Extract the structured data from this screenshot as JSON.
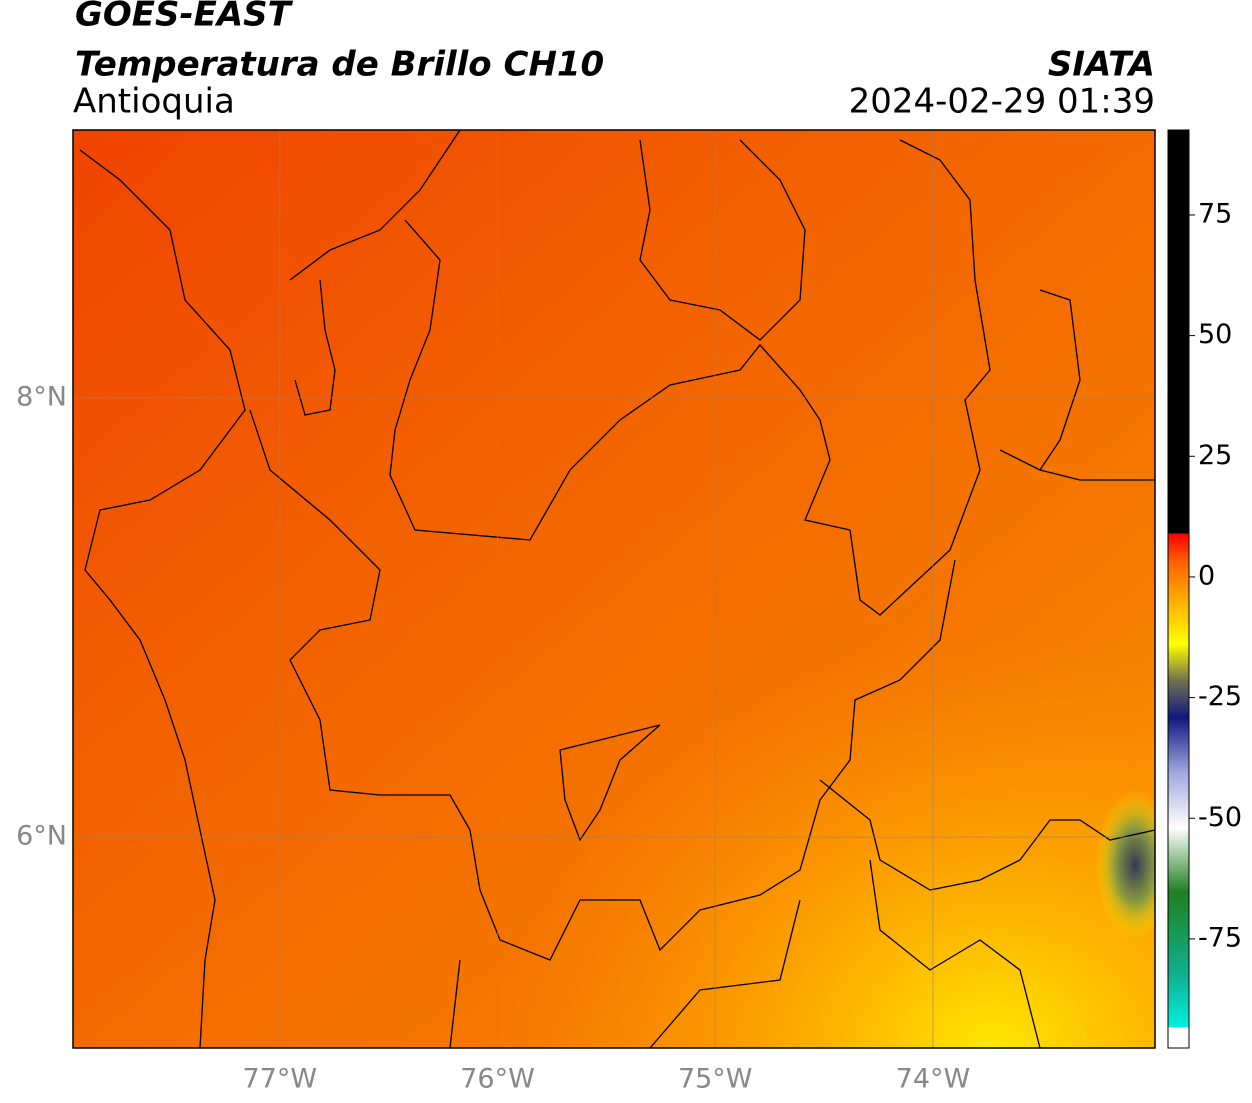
{
  "header": {
    "title": "GOES-EAST",
    "subtitle": "Temperatura de Brillo CH10",
    "region": "Antioquia",
    "source": "SIATA",
    "datetime": "2024-02-29 01:39"
  },
  "map": {
    "xlim": [
      -77.95,
      -72.98
    ],
    "ylim": [
      5.04,
      9.22
    ],
    "grid": true,
    "xticks": [
      {
        "value": -77,
        "label": "77°W"
      },
      {
        "value": -76,
        "label": "76°W"
      },
      {
        "value": -75,
        "label": "75°W"
      },
      {
        "value": -74,
        "label": "74°W"
      }
    ],
    "yticks": [
      {
        "value": 8,
        "label": "8°N"
      },
      {
        "value": 6,
        "label": "6°N"
      }
    ]
  },
  "colorbar": {
    "range": [
      -97.6,
      92.6
    ],
    "ticks": [
      75,
      50,
      25,
      0,
      -25,
      -50,
      -75
    ]
  }
}
